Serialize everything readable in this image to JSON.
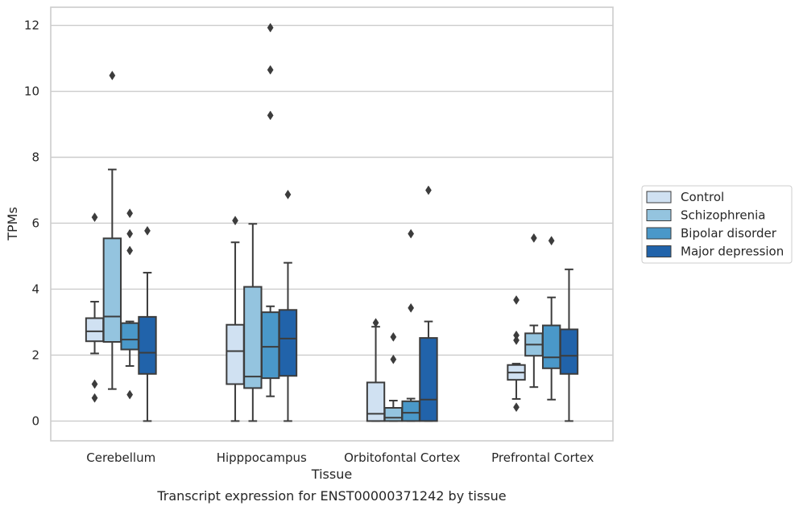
{
  "caption": "Transcript expression for ENST00000371242 by tissue",
  "chart_data": {
    "type": "boxplot",
    "title": "",
    "xlabel": "Tissue",
    "ylabel": "TPMs",
    "ylim": [
      -0.6,
      12.55
    ],
    "yticks": [
      "0",
      "2",
      "4",
      "6",
      "8",
      "10",
      "12"
    ],
    "grid": "horizontal",
    "legend_position": "right",
    "categories": [
      "Cerebellum",
      "Hipppocampus",
      "Orbitofontal Cortex",
      "Prefrontal Cortex"
    ],
    "series": [
      {
        "name": "Control",
        "color": "#d0e1f2",
        "boxes": [
          {
            "whislo": 2.05,
            "q1": 2.42,
            "med": 2.72,
            "q3": 3.12,
            "whishi": 3.62,
            "fliers": [
              1.12,
              0.7,
              6.18
            ]
          },
          {
            "whislo": 0.0,
            "q1": 1.12,
            "med": 2.12,
            "q3": 2.92,
            "whishi": 5.42,
            "fliers": [
              6.08
            ]
          },
          {
            "whislo": 0.0,
            "q1": 0.0,
            "med": 0.22,
            "q3": 1.17,
            "whishi": 2.86,
            "fliers": [
              2.98
            ]
          },
          {
            "whislo": 0.67,
            "q1": 1.25,
            "med": 1.47,
            "q3": 1.7,
            "whishi": 1.74,
            "fliers": [
              2.45,
              2.6,
              3.67,
              0.42
            ]
          }
        ]
      },
      {
        "name": "Schizophrenia",
        "color": "#94c4df",
        "boxes": [
          {
            "whislo": 0.97,
            "q1": 2.4,
            "med": 3.17,
            "q3": 5.54,
            "whishi": 7.63,
            "fliers": [
              10.48
            ]
          },
          {
            "whislo": 0.0,
            "q1": 1.0,
            "med": 1.35,
            "q3": 4.07,
            "whishi": 5.98,
            "fliers": []
          },
          {
            "whislo": 0.0,
            "q1": 0.0,
            "med": 0.1,
            "q3": 0.4,
            "whishi": 0.62,
            "fliers": [
              2.55,
              1.87
            ]
          },
          {
            "whislo": 1.03,
            "q1": 1.98,
            "med": 2.32,
            "q3": 2.66,
            "whishi": 2.9,
            "fliers": [
              5.55
            ]
          }
        ]
      },
      {
        "name": "Bipolar disorder",
        "color": "#4a98c9",
        "boxes": [
          {
            "whislo": 1.67,
            "q1": 2.17,
            "med": 2.47,
            "q3": 2.97,
            "whishi": 3.02,
            "fliers": [
              6.3,
              5.68,
              5.17,
              0.8
            ]
          },
          {
            "whislo": 0.75,
            "q1": 1.3,
            "med": 2.25,
            "q3": 3.3,
            "whishi": 3.48,
            "fliers": [
              11.93,
              10.65,
              9.27
            ]
          },
          {
            "whislo": 0.0,
            "q1": 0.0,
            "med": 0.25,
            "q3": 0.6,
            "whishi": 0.68,
            "fliers": [
              5.68,
              3.43
            ]
          },
          {
            "whislo": 0.65,
            "q1": 1.6,
            "med": 1.93,
            "q3": 2.9,
            "whishi": 3.75,
            "fliers": [
              5.47
            ]
          }
        ]
      },
      {
        "name": "Major depression",
        "color": "#2163aa",
        "boxes": [
          {
            "whislo": 0.0,
            "q1": 1.43,
            "med": 2.07,
            "q3": 3.16,
            "whishi": 4.5,
            "fliers": [
              5.77
            ]
          },
          {
            "whislo": 0.0,
            "q1": 1.37,
            "med": 2.5,
            "q3": 3.37,
            "whishi": 4.8,
            "fliers": [
              6.87
            ]
          },
          {
            "whislo": 0.0,
            "q1": 0.0,
            "med": 0.65,
            "q3": 2.52,
            "whishi": 3.02,
            "fliers": [
              7.0
            ]
          },
          {
            "whislo": 0.0,
            "q1": 1.43,
            "med": 1.98,
            "q3": 2.78,
            "whishi": 4.6,
            "fliers": []
          }
        ]
      }
    ]
  }
}
